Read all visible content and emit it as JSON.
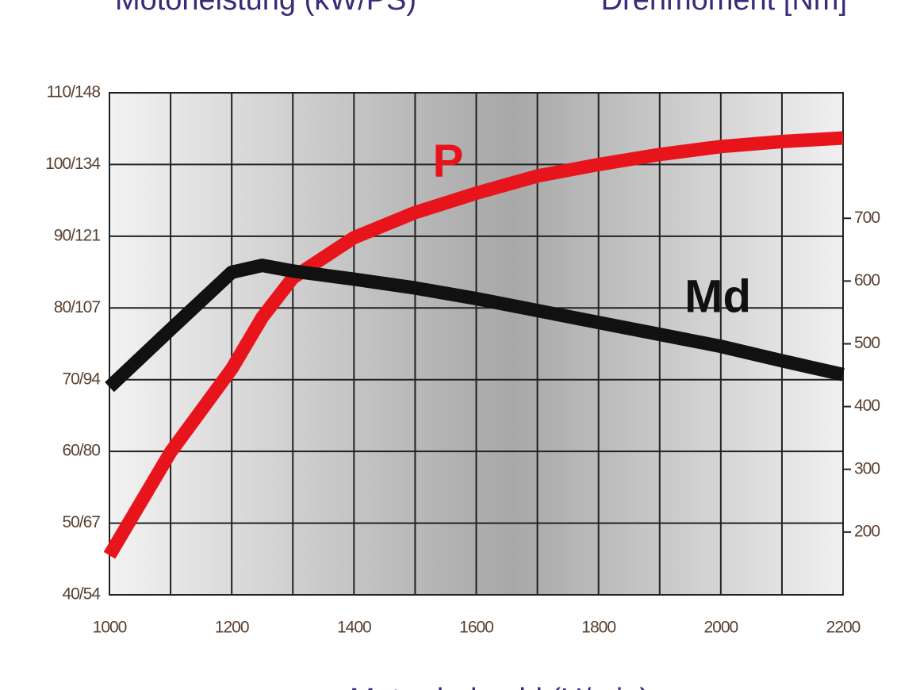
{
  "chart_data": {
    "type": "line",
    "title_left": "Motorleistung (kW/PS)",
    "title_right": "Drehmoment [Nm]",
    "x_label": "Motordrehzahl (U/min)",
    "x": [
      1000,
      1100,
      1200,
      1250,
      1300,
      1400,
      1500,
      1600,
      1700,
      1800,
      1900,
      2000,
      2100,
      2200
    ],
    "series": [
      {
        "name": "P",
        "color": "#e8141c",
        "axis": "y",
        "values": [
          45.5,
          59.9,
          71.5,
          78.7,
          84.2,
          89.8,
          93.3,
          96,
          98.4,
          100,
          101.4,
          102.5,
          103.2,
          103.7
        ]
      },
      {
        "name": "Md",
        "color": "#111111",
        "axis": "y2",
        "values": [
          431,
          523,
          614,
          625,
          616,
          603,
          589,
          572,
          553,
          534,
          515,
          496,
          473,
          451
        ]
      }
    ],
    "xlim": [
      1000,
      2200
    ],
    "xticks": [
      1000,
      1200,
      1400,
      1600,
      1800,
      2000,
      2200
    ],
    "x_grid": [
      1000,
      1100,
      1200,
      1300,
      1400,
      1500,
      1600,
      1700,
      1800,
      1900,
      2000,
      2100,
      2200
    ],
    "ylim": [
      40,
      110
    ],
    "yticks": [
      {
        "value": 40,
        "label": "40/54"
      },
      {
        "value": 50,
        "label": "50/67"
      },
      {
        "value": 60,
        "label": "60/80"
      },
      {
        "value": 70,
        "label": "70/94"
      },
      {
        "value": 80,
        "label": "80/107"
      },
      {
        "value": 90,
        "label": "90/121"
      },
      {
        "value": 100,
        "label": "100/134"
      },
      {
        "value": 110,
        "label": "110/148"
      }
    ],
    "y2lim": [
      100,
      900
    ],
    "y2ticks": [
      200,
      300,
      400,
      500,
      600,
      700
    ],
    "grid": true
  }
}
